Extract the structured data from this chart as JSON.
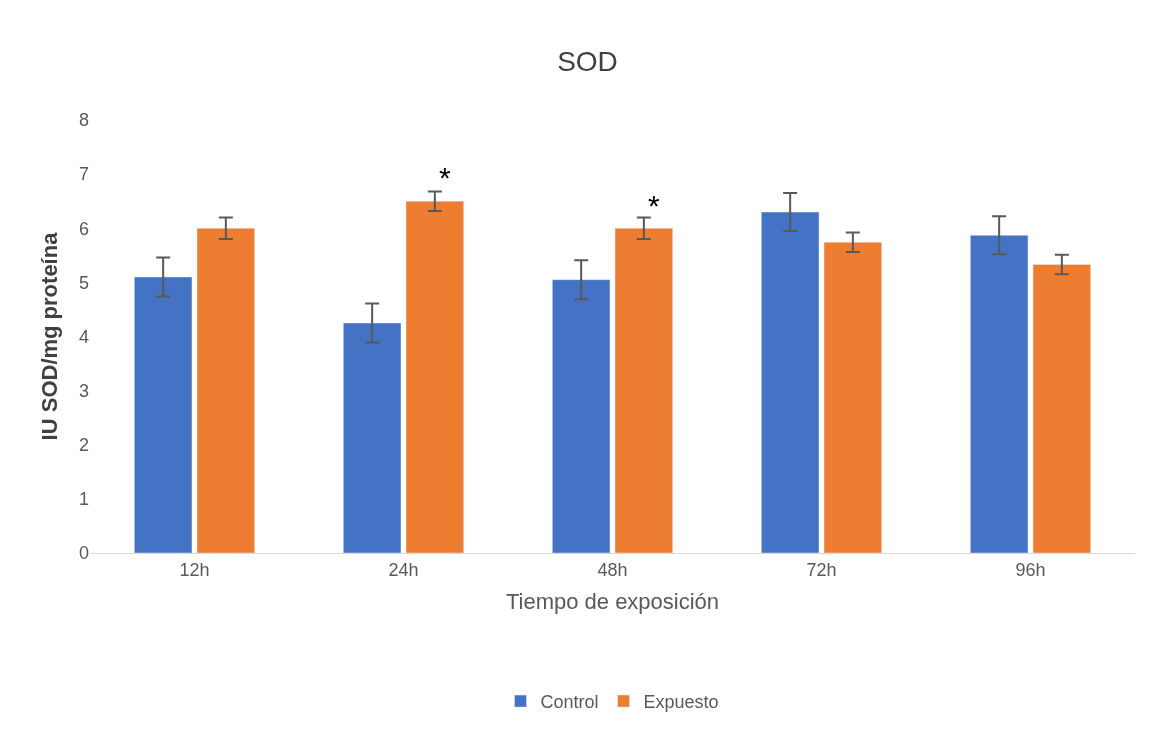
{
  "chart_data": {
    "type": "bar",
    "title": "SOD",
    "xlabel": "Tiempo de exposición",
    "ylabel": "IU SOD/mg proteína",
    "categories": [
      "12h",
      "24h",
      "48h",
      "72h",
      "96h"
    ],
    "series": [
      {
        "name": "Control",
        "color": "#4472c4",
        "values": [
          5.1,
          4.25,
          5.05,
          6.3,
          5.87
        ],
        "errors": [
          0.36,
          0.36,
          0.36,
          0.35,
          0.35
        ]
      },
      {
        "name": "Expuesto",
        "color": "#ed7d31",
        "values": [
          6.0,
          6.5,
          6.0,
          5.74,
          5.33
        ],
        "errors": [
          0.2,
          0.18,
          0.2,
          0.18,
          0.18
        ]
      }
    ],
    "ylim": [
      0,
      8
    ],
    "yticks": [
      0,
      1,
      2,
      3,
      4,
      5,
      6,
      7,
      8
    ],
    "grid": false,
    "legend": "bottom",
    "annotations": [
      "*",
      "*"
    ]
  }
}
